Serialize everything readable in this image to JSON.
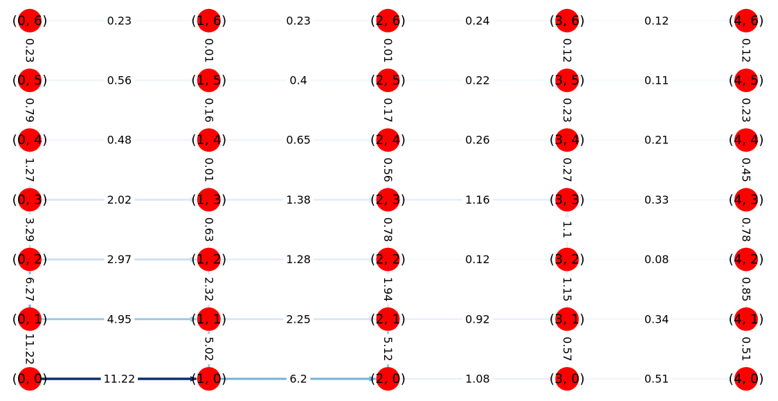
{
  "colors": {
    "node": "#ff0000",
    "label_background": "#ffffff",
    "edge_scale": [
      "#f7fbff",
      "#deebf7",
      "#c6dbef",
      "#9ecae1",
      "#6baed6",
      "#4292c6",
      "#2171b5",
      "#08306b"
    ]
  },
  "edge_value_max": 11.22,
  "grid": {
    "columns": 5,
    "rows": 7
  },
  "nodes": [
    {
      "col": 0,
      "row": 0,
      "label": "(0, 0)"
    },
    {
      "col": 1,
      "row": 0,
      "label": "(1, 0)"
    },
    {
      "col": 2,
      "row": 0,
      "label": "(2, 0)"
    },
    {
      "col": 3,
      "row": 0,
      "label": "(3, 0)"
    },
    {
      "col": 4,
      "row": 0,
      "label": "(4, 0)"
    },
    {
      "col": 0,
      "row": 1,
      "label": "(0, 1)"
    },
    {
      "col": 1,
      "row": 1,
      "label": "(1, 1)"
    },
    {
      "col": 2,
      "row": 1,
      "label": "(2, 1)"
    },
    {
      "col": 3,
      "row": 1,
      "label": "(3, 1)"
    },
    {
      "col": 4,
      "row": 1,
      "label": "(4, 1)"
    },
    {
      "col": 0,
      "row": 2,
      "label": "(0, 2)"
    },
    {
      "col": 1,
      "row": 2,
      "label": "(1, 2)"
    },
    {
      "col": 2,
      "row": 2,
      "label": "(2, 2)"
    },
    {
      "col": 3,
      "row": 2,
      "label": "(3, 2)"
    },
    {
      "col": 4,
      "row": 2,
      "label": "(4, 2)"
    },
    {
      "col": 0,
      "row": 3,
      "label": "(0, 3)"
    },
    {
      "col": 1,
      "row": 3,
      "label": "(1, 3)"
    },
    {
      "col": 2,
      "row": 3,
      "label": "(2, 3)"
    },
    {
      "col": 3,
      "row": 3,
      "label": "(3, 3)"
    },
    {
      "col": 4,
      "row": 3,
      "label": "(4, 3)"
    },
    {
      "col": 0,
      "row": 4,
      "label": "(0, 4)"
    },
    {
      "col": 1,
      "row": 4,
      "label": "(1, 4)"
    },
    {
      "col": 2,
      "row": 4,
      "label": "(2, 4)"
    },
    {
      "col": 3,
      "row": 4,
      "label": "(3, 4)"
    },
    {
      "col": 4,
      "row": 4,
      "label": "(4, 4)"
    },
    {
      "col": 0,
      "row": 5,
      "label": "(0, 5)"
    },
    {
      "col": 1,
      "row": 5,
      "label": "(1, 5)"
    },
    {
      "col": 2,
      "row": 5,
      "label": "(2, 5)"
    },
    {
      "col": 3,
      "row": 5,
      "label": "(3, 5)"
    },
    {
      "col": 4,
      "row": 5,
      "label": "(4, 5)"
    },
    {
      "col": 0,
      "row": 6,
      "label": "(0, 6)"
    },
    {
      "col": 1,
      "row": 6,
      "label": "(1, 6)"
    },
    {
      "col": 2,
      "row": 6,
      "label": "(2, 6)"
    },
    {
      "col": 3,
      "row": 6,
      "label": "(3, 6)"
    },
    {
      "col": 4,
      "row": 6,
      "label": "(4, 6)"
    }
  ],
  "horizontal_edges": [
    {
      "from": [
        0,
        0
      ],
      "to": [
        1,
        0
      ],
      "value": 11.22,
      "label": "11.22"
    },
    {
      "from": [
        1,
        0
      ],
      "to": [
        2,
        0
      ],
      "value": 6.2,
      "label": "6.2"
    },
    {
      "from": [
        2,
        0
      ],
      "to": [
        3,
        0
      ],
      "value": 1.08,
      "label": "1.08"
    },
    {
      "from": [
        3,
        0
      ],
      "to": [
        4,
        0
      ],
      "value": 0.51,
      "label": "0.51"
    },
    {
      "from": [
        0,
        1
      ],
      "to": [
        1,
        1
      ],
      "value": 4.95,
      "label": "4.95"
    },
    {
      "from": [
        1,
        1
      ],
      "to": [
        2,
        1
      ],
      "value": 2.25,
      "label": "2.25"
    },
    {
      "from": [
        2,
        1
      ],
      "to": [
        3,
        1
      ],
      "value": 0.92,
      "label": "0.92"
    },
    {
      "from": [
        3,
        1
      ],
      "to": [
        4,
        1
      ],
      "value": 0.34,
      "label": "0.34"
    },
    {
      "from": [
        0,
        2
      ],
      "to": [
        1,
        2
      ],
      "value": 2.97,
      "label": "2.97"
    },
    {
      "from": [
        1,
        2
      ],
      "to": [
        2,
        2
      ],
      "value": 1.28,
      "label": "1.28"
    },
    {
      "from": [
        2,
        2
      ],
      "to": [
        3,
        2
      ],
      "value": 0.12,
      "label": "0.12"
    },
    {
      "from": [
        3,
        2
      ],
      "to": [
        4,
        2
      ],
      "value": 0.08,
      "label": "0.08"
    },
    {
      "from": [
        0,
        3
      ],
      "to": [
        1,
        3
      ],
      "value": 2.02,
      "label": "2.02"
    },
    {
      "from": [
        1,
        3
      ],
      "to": [
        2,
        3
      ],
      "value": 1.38,
      "label": "1.38"
    },
    {
      "from": [
        2,
        3
      ],
      "to": [
        3,
        3
      ],
      "value": 1.16,
      "label": "1.16"
    },
    {
      "from": [
        3,
        3
      ],
      "to": [
        4,
        3
      ],
      "value": 0.33,
      "label": "0.33"
    },
    {
      "from": [
        0,
        4
      ],
      "to": [
        1,
        4
      ],
      "value": 0.48,
      "label": "0.48"
    },
    {
      "from": [
        1,
        4
      ],
      "to": [
        2,
        4
      ],
      "value": 0.65,
      "label": "0.65"
    },
    {
      "from": [
        2,
        4
      ],
      "to": [
        3,
        4
      ],
      "value": 0.26,
      "label": "0.26"
    },
    {
      "from": [
        3,
        4
      ],
      "to": [
        4,
        4
      ],
      "value": 0.21,
      "label": "0.21"
    },
    {
      "from": [
        0,
        5
      ],
      "to": [
        1,
        5
      ],
      "value": 0.56,
      "label": "0.56"
    },
    {
      "from": [
        1,
        5
      ],
      "to": [
        2,
        5
      ],
      "value": 0.4,
      "label": "0.4"
    },
    {
      "from": [
        2,
        5
      ],
      "to": [
        3,
        5
      ],
      "value": 0.22,
      "label": "0.22"
    },
    {
      "from": [
        3,
        5
      ],
      "to": [
        4,
        5
      ],
      "value": 0.11,
      "label": "0.11"
    },
    {
      "from": [
        0,
        6
      ],
      "to": [
        1,
        6
      ],
      "value": 0.23,
      "label": "0.23"
    },
    {
      "from": [
        1,
        6
      ],
      "to": [
        2,
        6
      ],
      "value": 0.23,
      "label": "0.23"
    },
    {
      "from": [
        2,
        6
      ],
      "to": [
        3,
        6
      ],
      "value": 0.24,
      "label": "0.24"
    },
    {
      "from": [
        3,
        6
      ],
      "to": [
        4,
        6
      ],
      "value": 0.12,
      "label": "0.12"
    }
  ],
  "vertical_edges": [
    {
      "from": [
        0,
        0
      ],
      "to": [
        0,
        1
      ],
      "value": 11.22,
      "label": "11.22"
    },
    {
      "from": [
        0,
        1
      ],
      "to": [
        0,
        2
      ],
      "value": 6.27,
      "label": "6.27"
    },
    {
      "from": [
        0,
        2
      ],
      "to": [
        0,
        3
      ],
      "value": 3.29,
      "label": "3.29"
    },
    {
      "from": [
        0,
        3
      ],
      "to": [
        0,
        4
      ],
      "value": 1.27,
      "label": "1.27"
    },
    {
      "from": [
        0,
        4
      ],
      "to": [
        0,
        5
      ],
      "value": 0.79,
      "label": "0.79"
    },
    {
      "from": [
        0,
        5
      ],
      "to": [
        0,
        6
      ],
      "value": 0.23,
      "label": "0.23"
    },
    {
      "from": [
        1,
        0
      ],
      "to": [
        1,
        1
      ],
      "value": 5.02,
      "label": "5.02"
    },
    {
      "from": [
        1,
        1
      ],
      "to": [
        1,
        2
      ],
      "value": 2.32,
      "label": "2.32"
    },
    {
      "from": [
        1,
        2
      ],
      "to": [
        1,
        3
      ],
      "value": 0.63,
      "label": "0.63"
    },
    {
      "from": [
        1,
        3
      ],
      "to": [
        1,
        4
      ],
      "value": 0.01,
      "label": "0.01"
    },
    {
      "from": [
        1,
        4
      ],
      "to": [
        1,
        5
      ],
      "value": 0.16,
      "label": "0.16"
    },
    {
      "from": [
        1,
        5
      ],
      "to": [
        1,
        6
      ],
      "value": 0.01,
      "label": "0.01"
    },
    {
      "from": [
        2,
        0
      ],
      "to": [
        2,
        1
      ],
      "value": 5.12,
      "label": "5.12"
    },
    {
      "from": [
        2,
        1
      ],
      "to": [
        2,
        2
      ],
      "value": 1.94,
      "label": "1.94"
    },
    {
      "from": [
        2,
        2
      ],
      "to": [
        2,
        3
      ],
      "value": 0.78,
      "label": "0.78"
    },
    {
      "from": [
        2,
        3
      ],
      "to": [
        2,
        4
      ],
      "value": 0.56,
      "label": "0.56"
    },
    {
      "from": [
        2,
        4
      ],
      "to": [
        2,
        5
      ],
      "value": 0.17,
      "label": "0.17"
    },
    {
      "from": [
        2,
        5
      ],
      "to": [
        2,
        6
      ],
      "value": 0.01,
      "label": "0.01"
    },
    {
      "from": [
        3,
        0
      ],
      "to": [
        3,
        1
      ],
      "value": 0.57,
      "label": "0.57"
    },
    {
      "from": [
        3,
        1
      ],
      "to": [
        3,
        2
      ],
      "value": 1.15,
      "label": "1.15"
    },
    {
      "from": [
        3,
        2
      ],
      "to": [
        3,
        3
      ],
      "value": 1.1,
      "label": "1.1"
    },
    {
      "from": [
        3,
        3
      ],
      "to": [
        3,
        4
      ],
      "value": 0.27,
      "label": "0.27"
    },
    {
      "from": [
        3,
        4
      ],
      "to": [
        3,
        5
      ],
      "value": 0.23,
      "label": "0.23"
    },
    {
      "from": [
        3,
        5
      ],
      "to": [
        3,
        6
      ],
      "value": 0.12,
      "label": "0.12"
    },
    {
      "from": [
        4,
        0
      ],
      "to": [
        4,
        1
      ],
      "value": 0.51,
      "label": "0.51"
    },
    {
      "from": [
        4,
        1
      ],
      "to": [
        4,
        2
      ],
      "value": 0.85,
      "label": "0.85"
    },
    {
      "from": [
        4,
        2
      ],
      "to": [
        4,
        3
      ],
      "value": 0.78,
      "label": "0.78"
    },
    {
      "from": [
        4,
        3
      ],
      "to": [
        4,
        4
      ],
      "value": 0.45,
      "label": "0.45"
    },
    {
      "from": [
        4,
        4
      ],
      "to": [
        4,
        5
      ],
      "value": 0.23,
      "label": "0.23"
    },
    {
      "from": [
        4,
        5
      ],
      "to": [
        4,
        6
      ],
      "value": 0.12,
      "label": "0.12"
    }
  ]
}
